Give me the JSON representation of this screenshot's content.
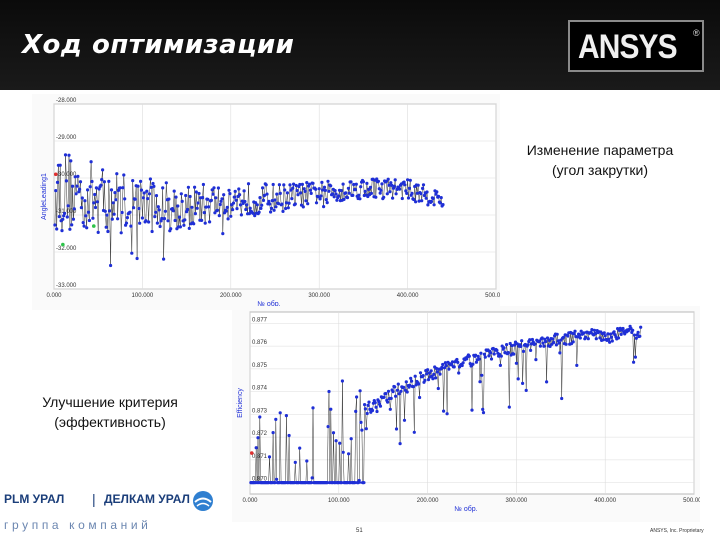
{
  "header": {
    "title": "Ход оптимизации",
    "logo": "ANSYS",
    "logo_mark": "®"
  },
  "annotations": {
    "param_line1": "Изменение параметра",
    "param_line2": "(угол закрутки)",
    "crit_line1": "Улучшение критерия",
    "crit_line2": "(эффективность)"
  },
  "footer": {
    "plm": "PLM УРАЛ",
    "sep": "|",
    "delcam": "ДЕЛКАМ УРАЛ",
    "group": "группа компаний",
    "page": "51",
    "copyright": "ANSYS, Inc. Proprietary"
  },
  "colors": {
    "point": "#1f2fd6",
    "line": "#222222",
    "baseline": "#1f2fd6",
    "start_marker": "#e03030",
    "init_marker": "#2ec44a",
    "header_bg": "#111111"
  },
  "chart_data": [
    {
      "type": "scatter",
      "ylabel": "AngleLeading1",
      "xlabel": "№ обр.",
      "ylim": [
        -33.0,
        -28.0
      ],
      "xlim": [
        0,
        500
      ],
      "yticks": [
        "-28.000",
        "-29.000",
        "-30.000",
        "-31.000",
        "-32.000",
        "-33.000"
      ],
      "xticks": [
        "0.000",
        "100.000",
        "200.000",
        "300.000",
        "400.000",
        "500.000"
      ],
      "n_samples": 440,
      "grid": true,
      "trend": [
        [
          0,
          -30.3
        ],
        [
          60,
          -30.6
        ],
        [
          100,
          -30.7
        ],
        [
          150,
          -30.8
        ],
        [
          200,
          -30.6
        ],
        [
          250,
          -30.55
        ],
        [
          300,
          -30.4
        ],
        [
          360,
          -30.25
        ],
        [
          400,
          -30.3
        ],
        [
          440,
          -30.6
        ]
      ],
      "spread": [
        [
          0,
          1.2
        ],
        [
          60,
          0.9
        ],
        [
          120,
          0.7
        ],
        [
          200,
          0.5
        ],
        [
          300,
          0.3
        ],
        [
          440,
          0.25
        ]
      ]
    },
    {
      "type": "scatter",
      "ylabel": "Efficiency",
      "xlabel": "№ обр.",
      "ylim": [
        0.8695,
        0.8775
      ],
      "xlim": [
        0,
        500
      ],
      "yticks": [
        "0.877",
        "0.876",
        "0.875",
        "0.874",
        "0.873",
        "0.872",
        "0.871",
        "0.870"
      ],
      "xticks": [
        "0.000",
        "100.000",
        "200.000",
        "300.000",
        "400.000",
        "500.000"
      ],
      "n_samples": 440,
      "grid": true,
      "baseline": [
        [
          0,
          0.87
        ],
        [
          130,
          0.87
        ]
      ],
      "trend": [
        [
          130,
          0.8735
        ],
        [
          160,
          0.8742
        ],
        [
          200,
          0.875
        ],
        [
          250,
          0.8757
        ],
        [
          300,
          0.8762
        ],
        [
          350,
          0.8766
        ],
        [
          400,
          0.8768
        ],
        [
          440,
          0.8769
        ]
      ]
    }
  ]
}
